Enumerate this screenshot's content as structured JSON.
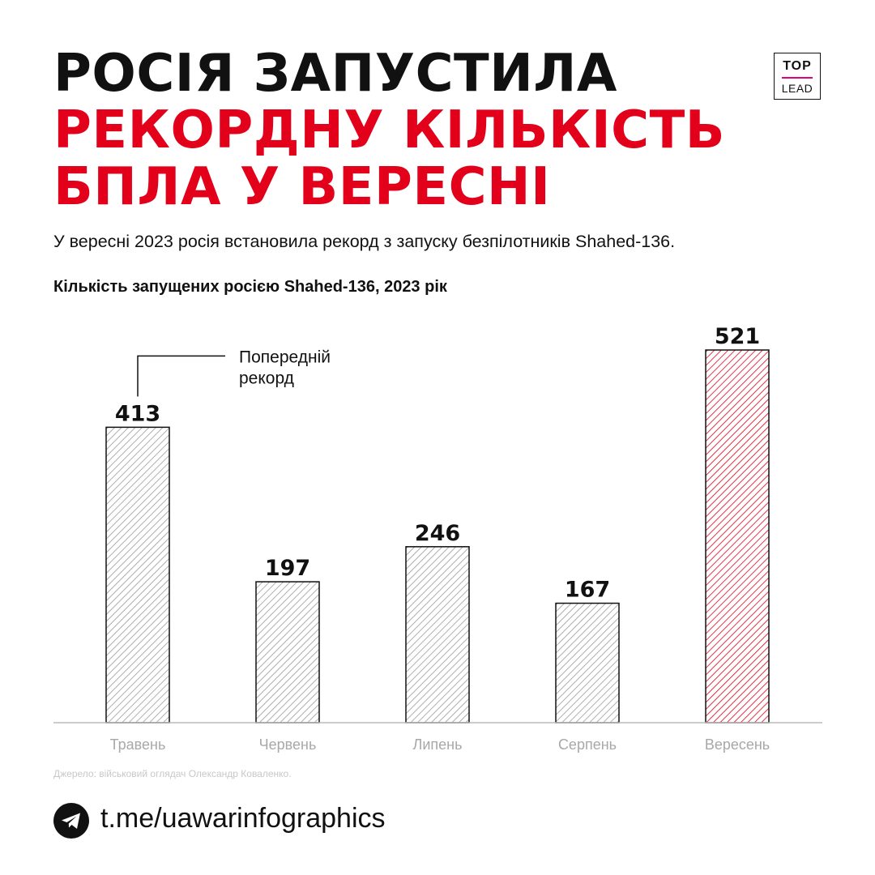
{
  "header": {
    "title_line1": "Росія запустила",
    "title_line2": "рекордну кількість",
    "title_line3": "БПЛА у вересні",
    "logo_top": "TOP",
    "logo_bottom": "LEAD"
  },
  "subtitle": "У вересні 2023 росія встановила рекорд з запуску безпілотників Shahed-136.",
  "chart_data": {
    "type": "bar",
    "title": "Кількість запущених росією Shahed-136, 2023 рік",
    "categories": [
      "Травень",
      "Червень",
      "Липень",
      "Серпень",
      "Вересень"
    ],
    "values": [
      413,
      197,
      246,
      167,
      521
    ],
    "highlight_index": 4,
    "ylim": [
      0,
      521
    ],
    "grid": false,
    "legend": "none",
    "annotation": {
      "index": 0,
      "lines": [
        "Попередній",
        "рекорд"
      ]
    },
    "colors": {
      "normal": "#9a9a9a",
      "highlight": "#e2001a",
      "outline": "#111111"
    }
  },
  "source": "Джерело: військовий оглядач Олександр Коваленко.",
  "footer": {
    "icon": "telegram-icon",
    "link": "t.me/uawarinfographics"
  }
}
